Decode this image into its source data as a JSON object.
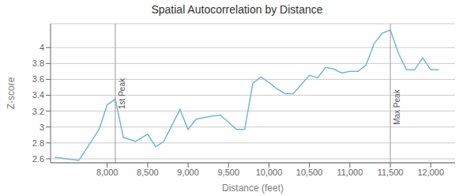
{
  "chart_data": {
    "type": "line",
    "title": "Spatial Autocorrelation by Distance",
    "xlabel": "Distance (feet)",
    "ylabel": "Z-score",
    "color": "#72b8d8",
    "grid": "y",
    "xlim": [
      7300,
      12300
    ],
    "ylim": [
      2.55,
      4.3
    ],
    "xticks": [
      {
        "value": 8000,
        "label": "8,000"
      },
      {
        "value": 8500,
        "label": "8,500"
      },
      {
        "value": 9000,
        "label": "9,000"
      },
      {
        "value": 9500,
        "label": "9,500"
      },
      {
        "value": 10000,
        "label": "10,000"
      },
      {
        "value": 10500,
        "label": "10,500"
      },
      {
        "value": 11000,
        "label": "11,000"
      },
      {
        "value": 11500,
        "label": "11,500"
      },
      {
        "value": 12000,
        "label": "12,000"
      }
    ],
    "yticks": [
      2.6,
      2.8,
      3,
      3.2,
      3.4,
      3.6,
      3.8,
      4
    ],
    "x": [
      7350,
      7650,
      7900,
      8000,
      8100,
      8200,
      8350,
      8500,
      8600,
      8700,
      8900,
      9000,
      9100,
      9300,
      9400,
      9600,
      9700,
      9800,
      9900,
      10000,
      10100,
      10200,
      10300,
      10500,
      10600,
      10700,
      10800,
      10900,
      11000,
      11100,
      11200,
      11300,
      11400,
      11500,
      11600,
      11700,
      11800,
      11900,
      12000,
      12100
    ],
    "values": [
      2.62,
      2.58,
      2.97,
      3.28,
      3.35,
      2.87,
      2.82,
      2.91,
      2.75,
      2.82,
      3.22,
      2.97,
      3.1,
      3.14,
      3.15,
      2.97,
      2.97,
      3.55,
      3.63,
      3.56,
      3.48,
      3.42,
      3.42,
      3.65,
      3.62,
      3.75,
      3.73,
      3.68,
      3.7,
      3.7,
      3.78,
      4.05,
      4.18,
      4.22,
      3.93,
      3.72,
      3.72,
      3.87,
      3.72,
      3.72
    ],
    "annotations": [
      {
        "x": 8100,
        "y": 3.42,
        "label": "1st Peak",
        "color": "#999999"
      },
      {
        "x": 11500,
        "y": 3.25,
        "label": "Max Peak",
        "color": "#999999"
      }
    ]
  }
}
